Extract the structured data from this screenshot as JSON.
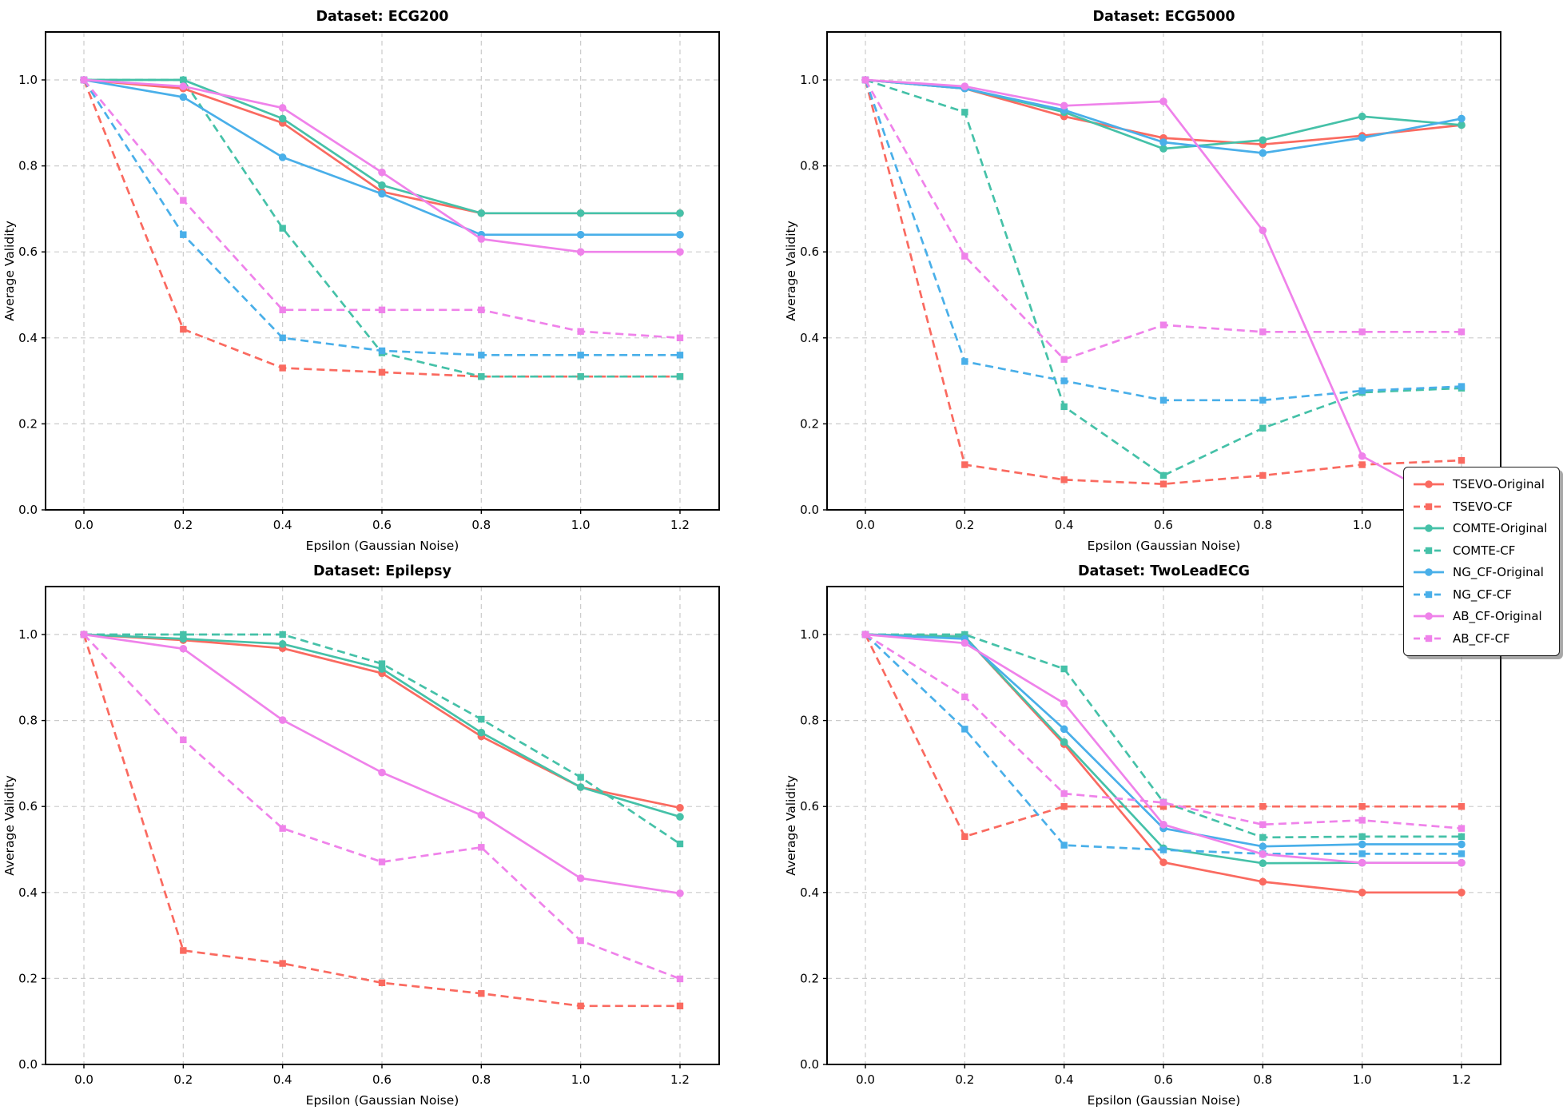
{
  "figure": {
    "xlabel": "Epsilon (Gaussian Noise)",
    "ylabel": "Average Validity",
    "x_tick_labels": [
      "0.0",
      "0.2",
      "0.4",
      "0.6",
      "0.8",
      "1.0",
      "1.2"
    ],
    "y_tick_labels": [
      "0.0",
      "0.2",
      "0.4",
      "0.6",
      "0.8",
      "1.0"
    ]
  },
  "styles": {
    "colors": {
      "TSEVO": "#FA6A60",
      "COMTE": "#45C1A8",
      "NG_CF": "#49AFE9",
      "AB_CF": "#EF82EA"
    },
    "grid_color": "#cbcbcb",
    "border_color": "#000000",
    "background": "#ffffff",
    "text_color": "#000000"
  },
  "legend": {
    "entries": [
      {
        "label": "TSEVO-Original",
        "method": "TSEVO",
        "dashed": false
      },
      {
        "label": "TSEVO-CF",
        "method": "TSEVO",
        "dashed": true
      },
      {
        "label": "COMTE-Original",
        "method": "COMTE",
        "dashed": false
      },
      {
        "label": "COMTE-CF",
        "method": "COMTE",
        "dashed": true
      },
      {
        "label": "NG_CF-Original",
        "method": "NG_CF",
        "dashed": false
      },
      {
        "label": "NG_CF-CF",
        "method": "NG_CF",
        "dashed": true
      },
      {
        "label": "AB_CF-Original",
        "method": "AB_CF",
        "dashed": false
      },
      {
        "label": "AB_CF-CF",
        "method": "AB_CF",
        "dashed": true
      }
    ]
  },
  "chart_data": [
    {
      "type": "line",
      "title": "Dataset: ECG200",
      "xlabel": "Epsilon (Gaussian Noise)",
      "ylabel": "Average Validity",
      "x": [
        0.0,
        0.2,
        0.4,
        0.6,
        0.8,
        1.0,
        1.2
      ],
      "xlim": [
        -0.077,
        1.277
      ],
      "ylim": [
        0.0,
        1.11
      ],
      "grid": true,
      "legend_position": "figure-right-center",
      "series": [
        {
          "name": "TSEVO-Original",
          "method": "TSEVO",
          "dashed": false,
          "values": [
            1.0,
            0.98,
            0.9,
            0.74,
            0.69,
            0.69,
            0.69
          ]
        },
        {
          "name": "TSEVO-CF",
          "method": "TSEVO",
          "dashed": true,
          "values": [
            1.0,
            0.42,
            0.33,
            0.32,
            0.31,
            0.31,
            0.31
          ]
        },
        {
          "name": "COMTE-Original",
          "method": "COMTE",
          "dashed": false,
          "values": [
            1.0,
            1.0,
            0.91,
            0.755,
            0.69,
            0.69,
            0.69
          ]
        },
        {
          "name": "COMTE-CF",
          "method": "COMTE",
          "dashed": true,
          "values": [
            1.0,
            1.0,
            0.655,
            0.365,
            0.31,
            0.31,
            0.31
          ]
        },
        {
          "name": "NG_CF-Original",
          "method": "NG_CF",
          "dashed": false,
          "values": [
            1.0,
            0.96,
            0.82,
            0.735,
            0.64,
            0.64,
            0.64
          ]
        },
        {
          "name": "NG_CF-CF",
          "method": "NG_CF",
          "dashed": true,
          "values": [
            1.0,
            0.64,
            0.4,
            0.37,
            0.36,
            0.36,
            0.36
          ]
        },
        {
          "name": "AB_CF-Original",
          "method": "AB_CF",
          "dashed": false,
          "values": [
            1.0,
            0.985,
            0.935,
            0.785,
            0.63,
            0.6,
            0.6
          ]
        },
        {
          "name": "AB_CF-CF",
          "method": "AB_CF",
          "dashed": true,
          "values": [
            1.0,
            0.72,
            0.465,
            0.465,
            0.465,
            0.415,
            0.4
          ]
        }
      ]
    },
    {
      "type": "line",
      "title": "Dataset: ECG5000",
      "xlabel": "Epsilon (Gaussian Noise)",
      "ylabel": "Average Validity",
      "x": [
        0.0,
        0.2,
        0.4,
        0.6,
        0.8,
        1.0,
        1.2
      ],
      "xlim": [
        -0.077,
        1.277
      ],
      "ylim": [
        0.0,
        1.11
      ],
      "grid": true,
      "series": [
        {
          "name": "TSEVO-Original",
          "method": "TSEVO",
          "dashed": false,
          "values": [
            1.0,
            0.98,
            0.915,
            0.865,
            0.85,
            0.87,
            0.895
          ]
        },
        {
          "name": "TSEVO-CF",
          "method": "TSEVO",
          "dashed": true,
          "values": [
            1.0,
            0.105,
            0.07,
            0.06,
            0.08,
            0.105,
            0.115
          ]
        },
        {
          "name": "COMTE-Original",
          "method": "COMTE",
          "dashed": false,
          "values": [
            1.0,
            0.98,
            0.925,
            0.84,
            0.86,
            0.915,
            0.895
          ]
        },
        {
          "name": "COMTE-CF",
          "method": "COMTE",
          "dashed": true,
          "values": [
            1.0,
            0.925,
            0.24,
            0.08,
            0.19,
            0.273,
            0.283
          ]
        },
        {
          "name": "NG_CF-Original",
          "method": "NG_CF",
          "dashed": false,
          "values": [
            1.0,
            0.98,
            0.93,
            0.855,
            0.83,
            0.865,
            0.91
          ]
        },
        {
          "name": "NG_CF-CF",
          "method": "NG_CF",
          "dashed": true,
          "values": [
            1.0,
            0.345,
            0.3,
            0.255,
            0.255,
            0.277,
            0.287
          ]
        },
        {
          "name": "AB_CF-Original",
          "method": "AB_CF",
          "dashed": false,
          "values": [
            1.0,
            0.985,
            0.94,
            0.95,
            0.65,
            0.125,
            0.0
          ]
        },
        {
          "name": "AB_CF-CF",
          "method": "AB_CF",
          "dashed": true,
          "values": [
            1.0,
            0.59,
            0.35,
            0.43,
            0.414,
            0.414,
            0.414
          ]
        }
      ]
    },
    {
      "type": "line",
      "title": "Dataset: Epilepsy",
      "xlabel": "Epsilon (Gaussian Noise)",
      "ylabel": "Average Validity",
      "x": [
        0.0,
        0.2,
        0.4,
        0.6,
        0.8,
        1.0,
        1.2
      ],
      "xlim": [
        -0.077,
        1.277
      ],
      "ylim": [
        0.0,
        1.11
      ],
      "grid": true,
      "series": [
        {
          "name": "TSEVO-Original",
          "method": "TSEVO",
          "dashed": false,
          "values": [
            1.0,
            0.987,
            0.968,
            0.91,
            0.763,
            0.645,
            0.597
          ]
        },
        {
          "name": "TSEVO-CF",
          "method": "TSEVO",
          "dashed": true,
          "values": [
            1.0,
            0.265,
            0.235,
            0.19,
            0.165,
            0.136,
            0.136
          ]
        },
        {
          "name": "COMTE-Original",
          "method": "COMTE",
          "dashed": false,
          "values": [
            1.0,
            0.99,
            0.978,
            0.92,
            0.772,
            0.645,
            0.576
          ]
        },
        {
          "name": "COMTE-CF",
          "method": "COMTE",
          "dashed": true,
          "values": [
            1.0,
            1.0,
            1.0,
            0.932,
            0.803,
            0.668,
            0.513
          ]
        },
        {
          "name": "AB_CF-Original",
          "method": "AB_CF",
          "dashed": false,
          "values": [
            1.0,
            0.967,
            0.801,
            0.679,
            0.58,
            0.433,
            0.398
          ]
        },
        {
          "name": "AB_CF-CF",
          "method": "AB_CF",
          "dashed": true,
          "values": [
            1.0,
            0.755,
            0.549,
            0.471,
            0.505,
            0.288,
            0.199
          ]
        }
      ]
    },
    {
      "type": "line",
      "title": "Dataset: TwoLeadECG",
      "xlabel": "Epsilon (Gaussian Noise)",
      "ylabel": "Average Validity",
      "x": [
        0.0,
        0.2,
        0.4,
        0.6,
        0.8,
        1.0,
        1.2
      ],
      "xlim": [
        -0.077,
        1.277
      ],
      "ylim": [
        0.0,
        1.11
      ],
      "grid": true,
      "series": [
        {
          "name": "TSEVO-Original",
          "method": "TSEVO",
          "dashed": false,
          "values": [
            1.0,
            0.995,
            0.745,
            0.47,
            0.425,
            0.4,
            0.4
          ]
        },
        {
          "name": "TSEVO-CF",
          "method": "TSEVO",
          "dashed": true,
          "values": [
            1.0,
            0.53,
            0.6,
            0.6,
            0.6,
            0.6,
            0.6
          ]
        },
        {
          "name": "COMTE-Original",
          "method": "COMTE",
          "dashed": false,
          "values": [
            1.0,
            0.995,
            0.75,
            0.503,
            0.468,
            0.469,
            0.469
          ]
        },
        {
          "name": "COMTE-CF",
          "method": "COMTE",
          "dashed": true,
          "values": [
            1.0,
            1.0,
            0.92,
            0.61,
            0.528,
            0.53,
            0.53
          ]
        },
        {
          "name": "NG_CF-Original",
          "method": "NG_CF",
          "dashed": false,
          "values": [
            1.0,
            0.99,
            0.78,
            0.549,
            0.507,
            0.512,
            0.512
          ]
        },
        {
          "name": "NG_CF-CF",
          "method": "NG_CF",
          "dashed": true,
          "values": [
            1.0,
            0.78,
            0.51,
            0.499,
            0.49,
            0.49,
            0.49
          ]
        },
        {
          "name": "AB_CF-Original",
          "method": "AB_CF",
          "dashed": false,
          "values": [
            1.0,
            0.98,
            0.84,
            0.558,
            0.489,
            0.469,
            0.469
          ]
        },
        {
          "name": "AB_CF-CF",
          "method": "AB_CF",
          "dashed": true,
          "values": [
            1.0,
            0.855,
            0.63,
            0.609,
            0.558,
            0.568,
            0.549
          ]
        }
      ]
    }
  ]
}
